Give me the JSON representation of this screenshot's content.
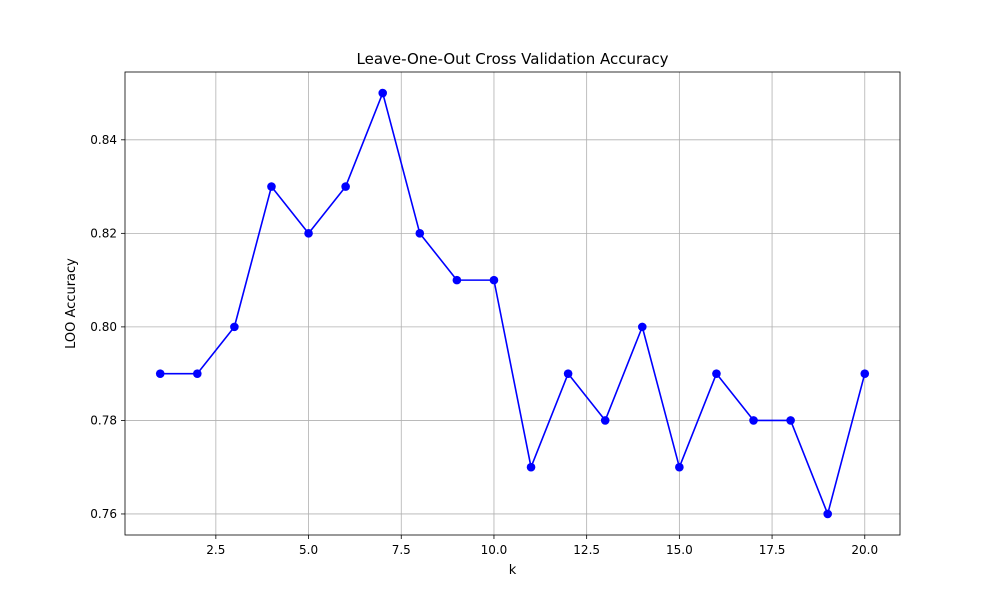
{
  "chart_data": {
    "type": "line",
    "title": "Leave-One-Out Cross Validation Accuracy",
    "xlabel": "k",
    "ylabel": "LOO Accuracy",
    "x": [
      1,
      2,
      3,
      4,
      5,
      6,
      7,
      8,
      9,
      10,
      11,
      12,
      13,
      14,
      15,
      16,
      17,
      18,
      19,
      20
    ],
    "series": [
      {
        "values": [
          0.79,
          0.79,
          0.8,
          0.83,
          0.82,
          0.83,
          0.85,
          0.82,
          0.81,
          0.81,
          0.77,
          0.79,
          0.78,
          0.8,
          0.77,
          0.79,
          0.78,
          0.78,
          0.76,
          0.79
        ],
        "color": "#0000ff",
        "marker": "circle"
      }
    ],
    "xlim": [
      0.05,
      20.95
    ],
    "ylim": [
      0.7555,
      0.8545
    ],
    "xticks": [
      2.5,
      5.0,
      7.5,
      10.0,
      12.5,
      15.0,
      17.5,
      20.0
    ],
    "xtick_labels": [
      "2.5",
      "5.0",
      "7.5",
      "10.0",
      "12.5",
      "15.0",
      "17.5",
      "20.0"
    ],
    "yticks": [
      0.76,
      0.78,
      0.8,
      0.82,
      0.84
    ],
    "ytick_labels": [
      "0.76",
      "0.78",
      "0.80",
      "0.82",
      "0.84"
    ],
    "grid": true,
    "legend": "none"
  }
}
